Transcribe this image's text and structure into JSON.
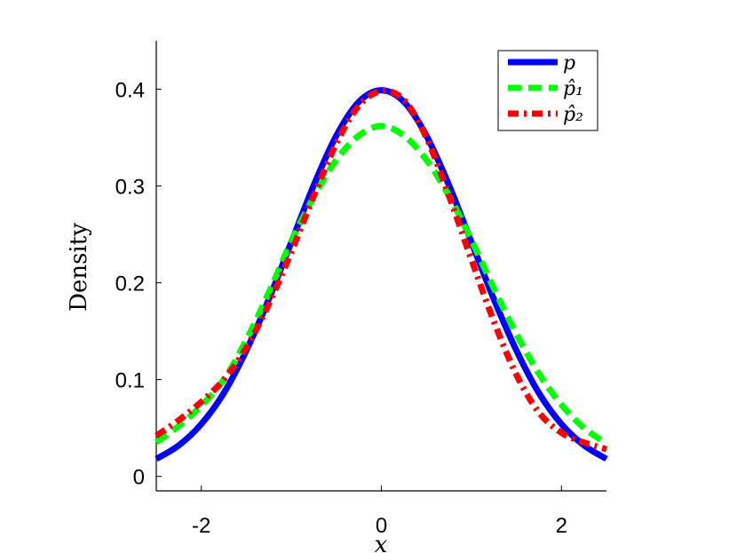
{
  "chart_data": {
    "type": "line",
    "xlabel": "x",
    "ylabel": "Density",
    "xlim": [
      -2.5,
      2.5
    ],
    "ylim": [
      -0.015,
      0.45
    ],
    "xticks": [
      -2,
      0,
      2
    ],
    "xtick_labels": [
      "-2",
      "0",
      "2"
    ],
    "yticks": [
      0,
      0.1,
      0.2,
      0.3,
      0.4
    ],
    "ytick_labels": [
      "0",
      "0.1",
      "0.2",
      "0.3",
      "0.4"
    ],
    "grid": false,
    "legend_position": "top-right",
    "x": [
      -2.5,
      -2.25,
      -2.0,
      -1.75,
      -1.5,
      -1.25,
      -1.0,
      -0.75,
      -0.5,
      -0.25,
      0.0,
      0.25,
      0.5,
      0.75,
      1.0,
      1.25,
      1.5,
      1.75,
      2.0,
      2.25,
      2.5
    ],
    "series": [
      {
        "name": "p",
        "style": "solid",
        "color": "#0000ff",
        "values": [
          0.018,
          0.032,
          0.054,
          0.086,
          0.13,
          0.183,
          0.242,
          0.301,
          0.352,
          0.387,
          0.399,
          0.387,
          0.352,
          0.301,
          0.242,
          0.183,
          0.13,
          0.086,
          0.054,
          0.032,
          0.018
        ]
      },
      {
        "name": "p̂₁",
        "style": "dashed",
        "color": "#00ff00",
        "values": [
          0.035,
          0.052,
          0.073,
          0.1,
          0.141,
          0.19,
          0.243,
          0.289,
          0.327,
          0.352,
          0.362,
          0.352,
          0.327,
          0.29,
          0.244,
          0.194,
          0.147,
          0.106,
          0.074,
          0.05,
          0.034
        ]
      },
      {
        "name": "p̂₂",
        "style": "dashdot",
        "color": "#ff0000",
        "values": [
          0.042,
          0.058,
          0.077,
          0.1,
          0.133,
          0.178,
          0.232,
          0.29,
          0.344,
          0.383,
          0.398,
          0.389,
          0.35,
          0.29,
          0.224,
          0.16,
          0.105,
          0.066,
          0.045,
          0.035,
          0.028
        ]
      }
    ]
  },
  "colors": {
    "p": "#0000ff",
    "p_hat_1": "#00ff00",
    "p_hat_2": "#ff0000"
  }
}
